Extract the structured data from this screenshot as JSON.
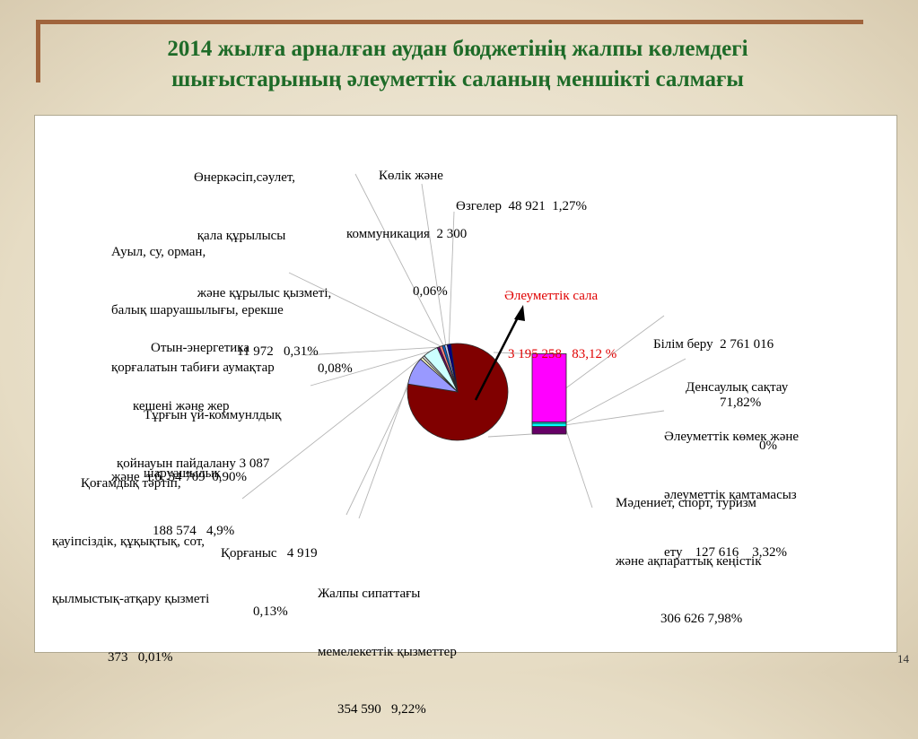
{
  "slide": {
    "title_line1": "2014 жылға арналған аудан бюджетінің жалпы көлемдегі",
    "title_line2": "шығыстарының әлеуметтік саланың меншікті салмағы",
    "page_number": "14"
  },
  "chart_data": [
    {
      "type": "pie",
      "title": "",
      "slices": [
        {
          "label": "Әлеуметтік сала",
          "value": 3195258,
          "percent_text": "83,12 %",
          "color": "#800000"
        },
        {
          "label": "Жалпы сипаттағы мемелекеттік қызметтер",
          "value": 354590,
          "percent_text": "9,22%",
          "color": "#9999ff"
        },
        {
          "label": "Қорғаныс",
          "value": 4919,
          "percent_text": "0,13%",
          "color": "#ffffcc"
        },
        {
          "label": "Қоғамдық тәртіп, қауіпсіздік, құқықтық, сот, қылмыстық-атқару қызметі",
          "value": 373,
          "percent_text": "0,01%",
          "color": "#cccccc"
        },
        {
          "label": "Тұрғын үй-коммунлдық шаруашылық",
          "value": 188574,
          "percent_text": "4,9%",
          "color": "#ccffff"
        },
        {
          "label": "Отын-энергетика кешені және жер қойнауын пайдалану",
          "value": 3087,
          "percent_text": "0,08%",
          "color": "#660066"
        },
        {
          "label": "Ауыл, су, орман, балық шаруашылығы, ерекше қорғалатын табиғи аумақтар және т.б.",
          "value": 34709,
          "percent_text": "0,90%",
          "color": "#ff8080"
        },
        {
          "label": "Өнеркәсіп,сәулет, қала құрылысы және құрылыс қызметі",
          "value": 11972,
          "percent_text": "0,31%",
          "color": "#0066cc"
        },
        {
          "label": "Көлік және коммуникация",
          "value": 2300,
          "percent_text": "0,06%",
          "color": "#ccccff"
        },
        {
          "label": "Өзгелер",
          "value": 48921,
          "percent_text": "1,27%",
          "color": "#000080"
        }
      ]
    },
    {
      "type": "bar",
      "stacked": true,
      "title": "",
      "categories": [
        "Әлеуметтік сала"
      ],
      "series": [
        {
          "name": "Мәдениет, спорт, туризм және ақпараттық кеңістік",
          "values": [
            306626
          ],
          "percent_text": "7,98%",
          "color": "#660066"
        },
        {
          "name": "Әлеуметтік көмек және әлеуметтік қамтамасыз ету",
          "values": [
            127616
          ],
          "percent_text": "3,32%",
          "color": "#00ffff"
        },
        {
          "name": "Денсаулық сақтау",
          "values": [
            0
          ],
          "percent_text": "0%",
          "color": "#00ffff"
        },
        {
          "name": "Білім беру",
          "values": [
            2761016
          ],
          "percent_text": "71,82%",
          "color": "#ff00ff"
        }
      ]
    }
  ],
  "labels": {
    "industry": [
      "Өнеркәсіп,сәулет,",
      " қала құрылысы",
      " және құрылыс қызметі,",
      "11 972   0,31%"
    ],
    "transport": [
      "Көлік және",
      "коммуникация  2 300",
      "0,06%"
    ],
    "other": "Өзгелер  48 921  1,27%",
    "agri": [
      "Ауыл, су, орман,",
      "балық шаруашылығы, ерекше",
      "қорғалатын табиғи аумақтар",
      "",
      "және  т.б. 34 709  0,90%"
    ],
    "energy": [
      "Отын-энергетика",
      "кешені және жер",
      "қойнауын пайдалану 3 087"
    ],
    "energy_pct": "0,08%",
    "housing": [
      "Тұрғын үй-коммунлдық",
      "шаруашылық",
      "188 574   4,9%"
    ],
    "order": [
      "Қоғамдық тәртіп,",
      "қауіпсіздік, құқықтық, сот,",
      "қылмыстық-атқару қызметі",
      "373   0,01%"
    ],
    "defense": [
      "Қорғаныс   4 919",
      "0,13%"
    ],
    "general": [
      "Жалпы сипаттағы",
      "мемелекеттік қызметтер",
      "354 590   9,22%"
    ],
    "social": [
      "Әлеуметтік сала",
      "3 195 258   83,12 %"
    ],
    "education": [
      "Білім беру  2 761 016",
      "71,82%"
    ],
    "health": [
      "Денсаулық сақтау",
      "0%"
    ],
    "welfare": [
      "Әлеуметтік көмек және",
      "әлеуметтік қамтамасыз",
      "ету",
      "127 616    3,32%"
    ],
    "culture": [
      "Мәдениет, спорт, туризм",
      "және ақпараттық кеңістік",
      "306 626 7,98%"
    ]
  }
}
